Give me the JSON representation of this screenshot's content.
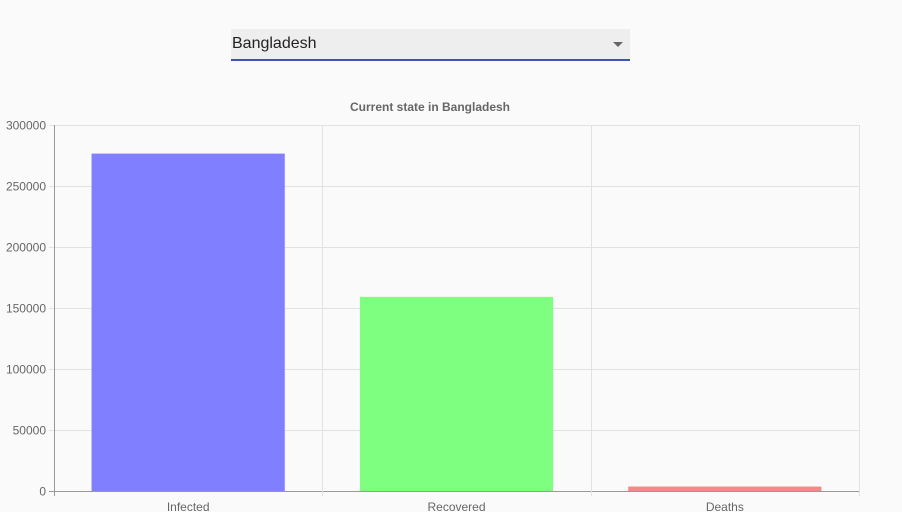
{
  "country_select": {
    "value": "Bangladesh",
    "icon": "chevron-down-icon"
  },
  "chart_data": {
    "type": "bar",
    "title": "Current state in Bangladesh",
    "categories": [
      "Infected",
      "Recovered",
      "Deaths"
    ],
    "values": [
      276549,
      159127,
      3657
    ],
    "colors": [
      "#7f7fff",
      "#7fff7f",
      "#f28a8a"
    ],
    "ylim": [
      0,
      300000
    ],
    "yticks": [
      "300000",
      "250000",
      "200000",
      "150000",
      "100000",
      "50000",
      "0"
    ],
    "grid": true,
    "xlabel": "",
    "ylabel": ""
  }
}
